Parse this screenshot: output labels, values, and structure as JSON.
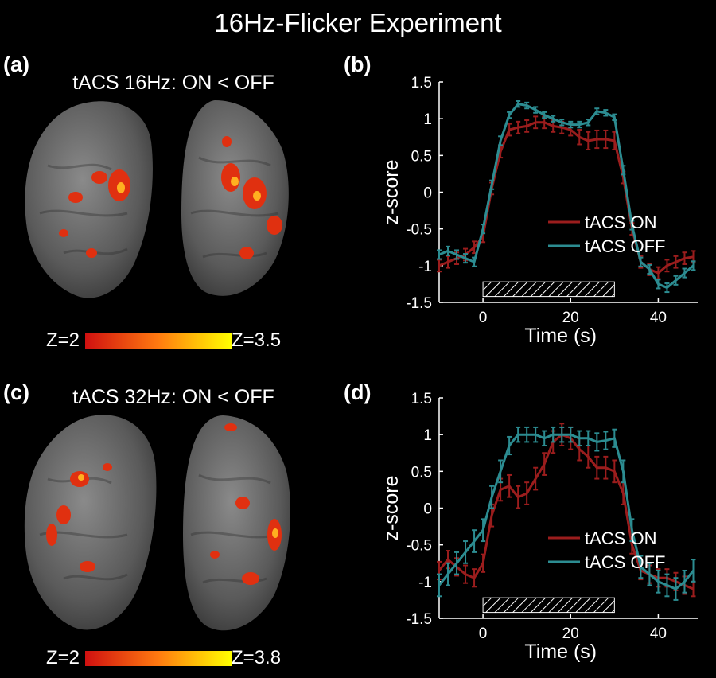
{
  "figure": {
    "title": "16Hz-Flicker Experiment",
    "colors": {
      "on": "#9b1d1d",
      "off": "#2c8c91",
      "axis": "#ffffff",
      "background": "#000000"
    }
  },
  "panels": {
    "a": {
      "letter": "(a)",
      "title": "tACS 16Hz: ON < OFF",
      "colorbar": {
        "min_label": "Z=2",
        "max_label": "Z=3.5",
        "min_color": "#d01010",
        "max_color": "#ffff00"
      }
    },
    "b": {
      "letter": "(b)"
    },
    "c": {
      "letter": "(c)",
      "title": "tACS 32Hz: ON < OFF",
      "colorbar": {
        "min_label": "Z=2",
        "max_label": "Z=3.8",
        "min_color": "#d01010",
        "max_color": "#ffff00"
      }
    },
    "d": {
      "letter": "(d)"
    }
  },
  "chart_data": [
    {
      "id": "b",
      "type": "line",
      "xlabel": "Time (s)",
      "ylabel": "z-score",
      "xlim": [
        -10,
        49
      ],
      "ylim": [
        -1.5,
        1.5
      ],
      "xticks": [
        0,
        20,
        40
      ],
      "yticks": [
        -1.5,
        -1,
        -0.5,
        0,
        0.5,
        1,
        1.5
      ],
      "ytick_labels": [
        "-1.5",
        "-1",
        "-0.5",
        "0",
        "0.5",
        "1",
        "1.5"
      ],
      "stimulus_interval": [
        0,
        30
      ],
      "legend": "center-right",
      "x": [
        -10,
        -8,
        -6,
        -4,
        -2,
        0,
        2,
        4,
        6,
        8,
        10,
        12,
        14,
        16,
        18,
        20,
        22,
        24,
        26,
        28,
        30,
        32,
        34,
        36,
        38,
        40,
        42,
        44,
        46,
        48
      ],
      "series": [
        {
          "name": "tACS ON",
          "color": "#9b1d1d",
          "values": [
            -1.0,
            -0.95,
            -0.9,
            -0.85,
            -0.75,
            -0.6,
            0.05,
            0.55,
            0.85,
            0.88,
            0.9,
            0.95,
            0.95,
            0.9,
            0.88,
            0.85,
            0.75,
            0.7,
            0.72,
            0.72,
            0.7,
            0.2,
            -0.5,
            -0.95,
            -1.05,
            -1.1,
            -1.0,
            -0.95,
            -0.9,
            -0.88
          ],
          "errors": [
            0.08,
            0.08,
            0.08,
            0.08,
            0.08,
            0.08,
            0.08,
            0.08,
            0.08,
            0.08,
            0.08,
            0.08,
            0.08,
            0.08,
            0.08,
            0.08,
            0.1,
            0.12,
            0.12,
            0.12,
            0.12,
            0.08,
            0.08,
            0.08,
            0.08,
            0.08,
            0.08,
            0.08,
            0.08,
            0.08
          ]
        },
        {
          "name": "tACS OFF",
          "color": "#2c8c91",
          "values": [
            -0.85,
            -0.8,
            -0.85,
            -0.9,
            -0.95,
            -0.5,
            0.1,
            0.7,
            1.05,
            1.2,
            1.18,
            1.12,
            1.05,
            1.0,
            0.95,
            0.92,
            0.92,
            0.95,
            1.1,
            1.08,
            1.02,
            0.3,
            -0.45,
            -0.95,
            -1.05,
            -1.25,
            -1.3,
            -1.2,
            -1.1,
            -1.0
          ],
          "errors": [
            0.06,
            0.06,
            0.06,
            0.06,
            0.06,
            0.06,
            0.06,
            0.06,
            0.04,
            0.04,
            0.04,
            0.04,
            0.04,
            0.04,
            0.04,
            0.04,
            0.04,
            0.04,
            0.04,
            0.04,
            0.04,
            0.06,
            0.06,
            0.06,
            0.06,
            0.06,
            0.06,
            0.06,
            0.06,
            0.06
          ]
        }
      ]
    },
    {
      "id": "d",
      "type": "line",
      "xlabel": "Time (s)",
      "ylabel": "z-score",
      "xlim": [
        -10,
        49
      ],
      "ylim": [
        -1.5,
        1.5
      ],
      "xticks": [
        0,
        20,
        40
      ],
      "yticks": [
        -1.5,
        -1,
        -0.5,
        0,
        0.5,
        1,
        1.5
      ],
      "ytick_labels": [
        "-1.5",
        "-1",
        "-0.5",
        "0",
        "0.5",
        "1",
        "1.5"
      ],
      "stimulus_interval": [
        0,
        30
      ],
      "legend": "center-right",
      "x": [
        -10,
        -8,
        -6,
        -4,
        -2,
        0,
        2,
        4,
        6,
        8,
        10,
        12,
        14,
        16,
        18,
        20,
        22,
        24,
        26,
        28,
        30,
        32,
        34,
        36,
        38,
        40,
        42,
        44,
        46,
        48
      ],
      "series": [
        {
          "name": "tACS ON",
          "color": "#9b1d1d",
          "values": [
            -0.85,
            -0.7,
            -0.8,
            -0.9,
            -0.95,
            -0.75,
            -0.1,
            0.25,
            0.3,
            0.15,
            0.2,
            0.4,
            0.6,
            0.9,
            1.0,
            0.95,
            0.8,
            0.7,
            0.55,
            0.55,
            0.5,
            0.2,
            -0.5,
            -0.85,
            -0.9,
            -0.95,
            -0.95,
            -1.0,
            -1.05,
            -1.1
          ],
          "errors": [
            0.12,
            0.12,
            0.12,
            0.12,
            0.12,
            0.12,
            0.15,
            0.15,
            0.15,
            0.15,
            0.15,
            0.15,
            0.15,
            0.15,
            0.15,
            0.15,
            0.15,
            0.15,
            0.15,
            0.15,
            0.15,
            0.15,
            0.12,
            0.12,
            0.12,
            0.12,
            0.12,
            0.12,
            0.12,
            0.1
          ]
        },
        {
          "name": "tACS OFF",
          "color": "#2c8c91",
          "values": [
            -1.05,
            -0.9,
            -0.75,
            -0.6,
            -0.45,
            -0.3,
            0.15,
            0.5,
            0.85,
            1.0,
            1.0,
            1.0,
            0.95,
            1.0,
            1.0,
            1.0,
            0.95,
            0.95,
            0.9,
            0.92,
            0.95,
            0.5,
            -0.3,
            -0.8,
            -0.9,
            -1.0,
            -1.05,
            -1.1,
            -1.0,
            -0.85
          ],
          "errors": [
            0.15,
            0.15,
            0.15,
            0.15,
            0.15,
            0.15,
            0.15,
            0.15,
            0.12,
            0.1,
            0.1,
            0.1,
            0.1,
            0.1,
            0.1,
            0.1,
            0.1,
            0.1,
            0.12,
            0.12,
            0.12,
            0.15,
            0.15,
            0.15,
            0.15,
            0.15,
            0.15,
            0.15,
            0.15,
            0.15
          ]
        }
      ]
    }
  ]
}
